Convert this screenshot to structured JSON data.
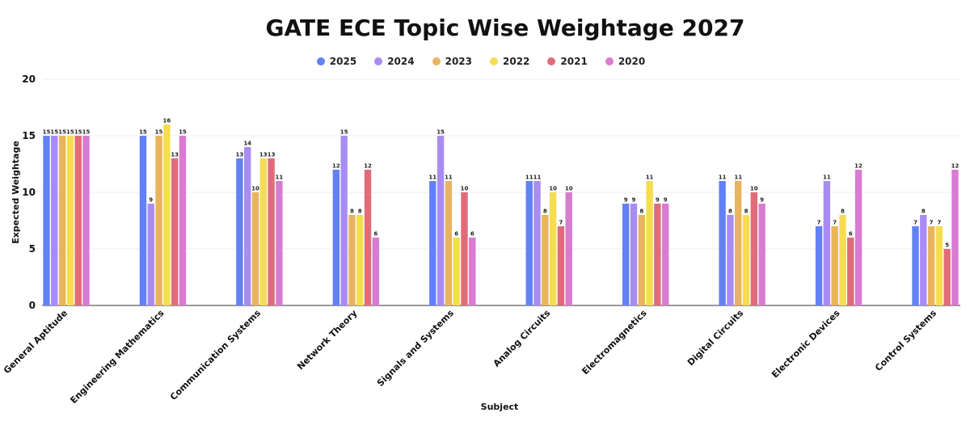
{
  "chart_data": {
    "type": "bar",
    "title": "GATE ECE Topic Wise Weightage 2027",
    "xlabel": "Subject",
    "ylabel": "Expected Weightage",
    "ylim": [
      0,
      20
    ],
    "yticks": [
      0,
      5,
      10,
      15,
      20
    ],
    "grid": true,
    "legend_position": "top-center",
    "categories": [
      "General Aptitude",
      "Engineering Mathematics",
      "Communication Systems",
      "Network Theory",
      "Signals and Systems",
      "Analog Circuits",
      "Electromagnetics",
      "Digital Circuits",
      "Electronic Devices",
      "Control Systems"
    ],
    "series": [
      {
        "name": "2025",
        "color": "#6381f6",
        "values": [
          15,
          15,
          13,
          12,
          11,
          11,
          9,
          11,
          7,
          7
        ]
      },
      {
        "name": "2024",
        "color": "#a98cf3",
        "values": [
          15,
          9,
          14,
          15,
          15,
          11,
          9,
          8,
          11,
          8
        ]
      },
      {
        "name": "2023",
        "color": "#e8b45f",
        "values": [
          15,
          15,
          10,
          8,
          11,
          8,
          8,
          11,
          7,
          7
        ]
      },
      {
        "name": "2022",
        "color": "#f5dd4f",
        "values": [
          15,
          16,
          13,
          8,
          6,
          10,
          11,
          8,
          8,
          7
        ]
      },
      {
        "name": "2021",
        "color": "#e06c79",
        "values": [
          15,
          13,
          13,
          12,
          10,
          7,
          9,
          10,
          6,
          5
        ]
      },
      {
        "name": "2020",
        "color": "#d97bd0",
        "values": [
          15,
          15,
          11,
          6,
          6,
          10,
          9,
          9,
          12,
          12
        ]
      }
    ]
  }
}
